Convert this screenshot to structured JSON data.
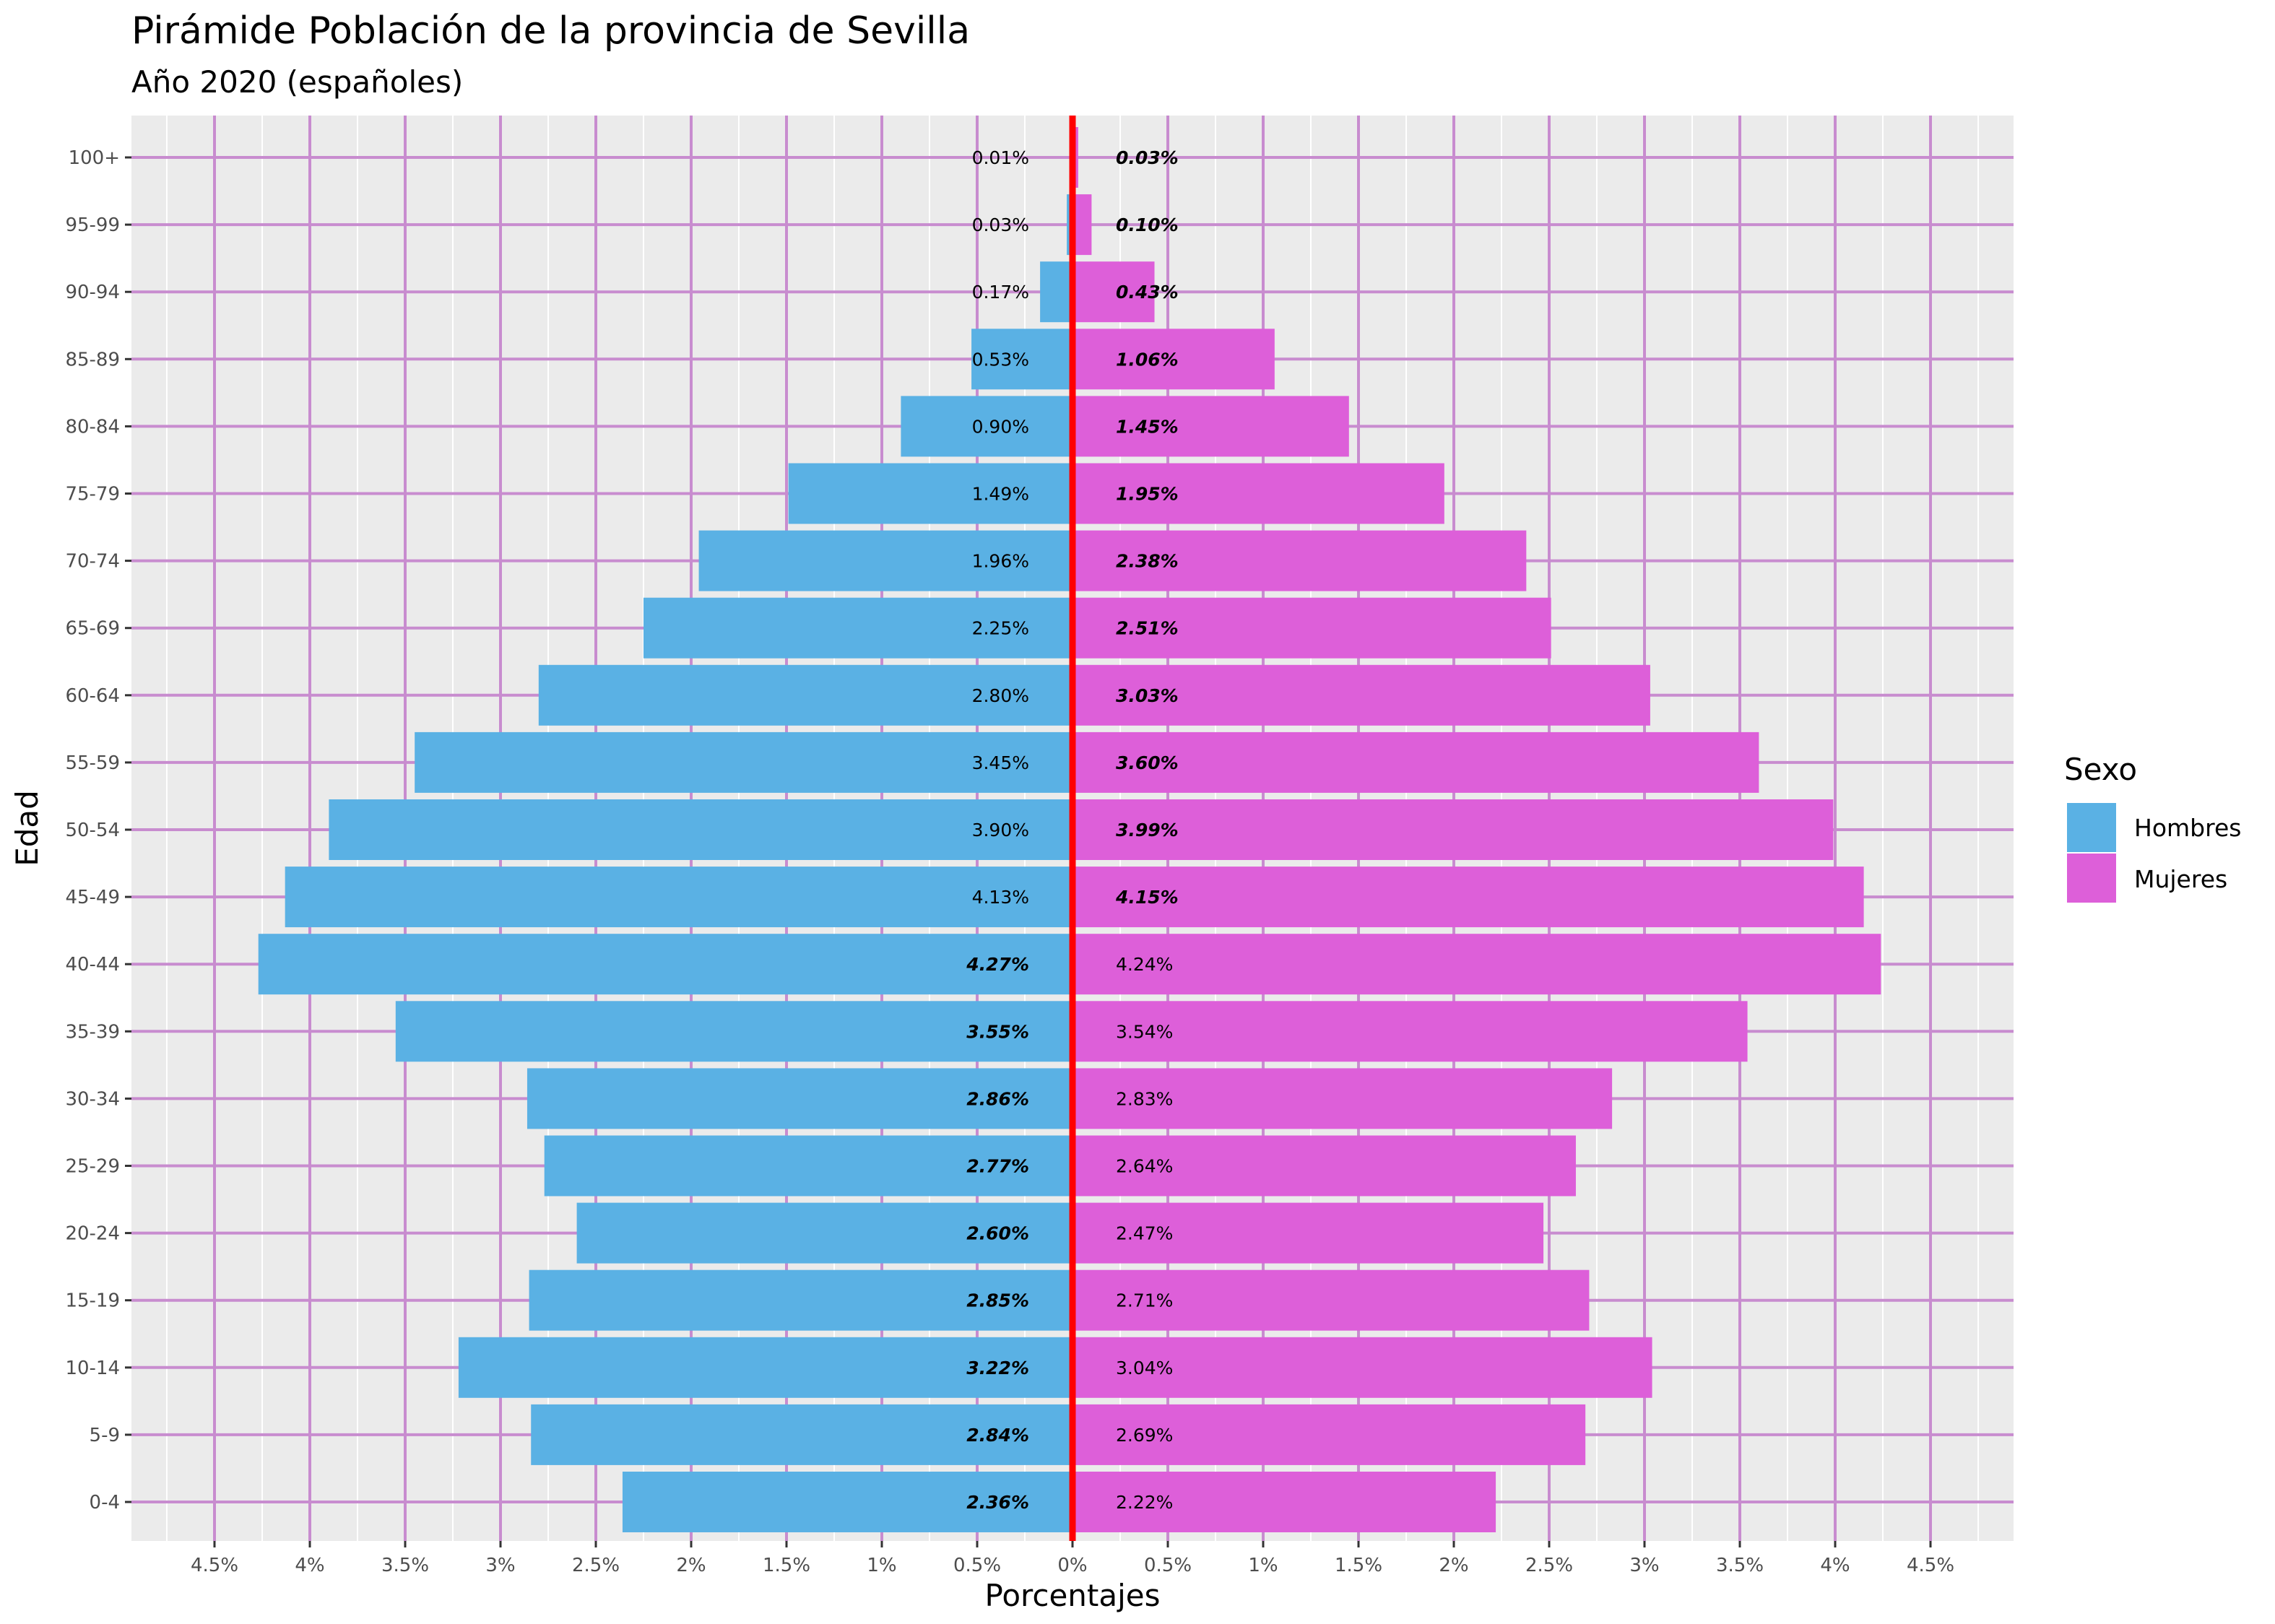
{
  "chart_data": {
    "type": "bar",
    "orientation": "horizontal",
    "layout": "population-pyramid",
    "title": "Pirámide Población de la provincia de Sevilla",
    "subtitle": "Año 2020  (españoles)",
    "xlabel": "Porcentajes",
    "ylabel": "Edad",
    "xlim": [
      -4.9,
      4.9
    ],
    "x_ticks": [
      -4.5,
      -4,
      -3.5,
      -3,
      -2.5,
      -2,
      -1.5,
      -1,
      -0.5,
      0,
      0.5,
      1,
      1.5,
      2,
      2.5,
      3,
      3.5,
      4,
      4.5
    ],
    "x_tick_labels": [
      "4.5%",
      "4%",
      "3.5%",
      "3%",
      "2.5%",
      "2%",
      "1.5%",
      "1%",
      "0.5%",
      "0%",
      "0.5%",
      "1%",
      "1.5%",
      "2%",
      "2.5%",
      "3%",
      "3.5%",
      "4%",
      "4.5%"
    ],
    "categories": [
      "0-4",
      "5-9",
      "10-14",
      "15-19",
      "20-24",
      "25-29",
      "30-34",
      "35-39",
      "40-44",
      "45-49",
      "50-54",
      "55-59",
      "60-64",
      "65-69",
      "70-74",
      "75-79",
      "80-84",
      "85-89",
      "90-94",
      "95-99",
      "100+"
    ],
    "series": [
      {
        "name": "Hombres",
        "side": "left",
        "color": "#5ab1e4",
        "values": [
          2.36,
          2.84,
          3.22,
          2.85,
          2.6,
          2.77,
          2.86,
          3.55,
          4.27,
          4.13,
          3.9,
          3.45,
          2.8,
          2.25,
          1.96,
          1.49,
          0.9,
          0.53,
          0.17,
          0.03,
          0.01
        ],
        "labels": [
          "2.36%",
          "2.84%",
          "3.22%",
          "2.85%",
          "2.60%",
          "2.77%",
          "2.86%",
          "3.55%",
          "4.27%",
          "4.13%",
          "3.90%",
          "3.45%",
          "2.80%",
          "2.25%",
          "1.96%",
          "1.49%",
          "0.90%",
          "0.53%",
          "0.17%",
          "0.03%",
          "0.01%"
        ]
      },
      {
        "name": "Mujeres",
        "side": "right",
        "color": "#dd5fd9",
        "values": [
          2.22,
          2.69,
          3.04,
          2.71,
          2.47,
          2.64,
          2.83,
          3.54,
          4.24,
          4.15,
          3.99,
          3.6,
          3.03,
          2.51,
          2.38,
          1.95,
          1.45,
          1.06,
          0.43,
          0.1,
          0.03
        ],
        "labels": [
          "2.22%",
          "2.69%",
          "3.04%",
          "2.71%",
          "2.47%",
          "2.64%",
          "2.83%",
          "3.54%",
          "4.24%",
          "4.15%",
          "3.99%",
          "3.60%",
          "3.03%",
          "2.51%",
          "2.38%",
          "1.95%",
          "1.45%",
          "1.06%",
          "0.43%",
          "0.10%",
          "0.03%"
        ]
      }
    ],
    "legend": {
      "title": "Sexo",
      "position": "right"
    },
    "grid": true,
    "colors": {
      "panel_background": "#ebebeb",
      "major_grid": "#c88ccf",
      "minor_grid": "#ffffff",
      "center_line": "#ff0000"
    }
  }
}
